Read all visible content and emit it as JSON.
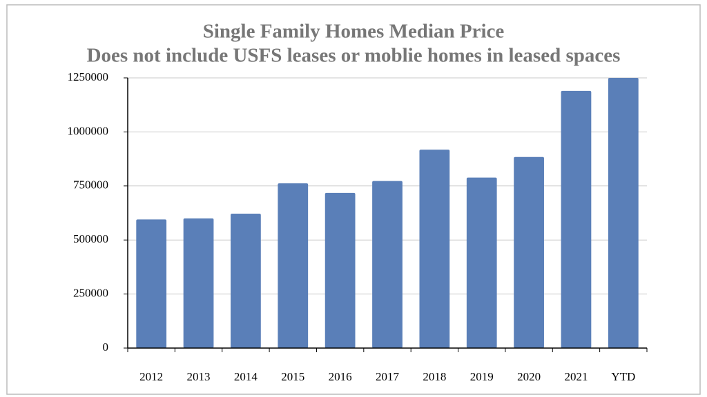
{
  "chart_data": {
    "type": "bar",
    "title": "Single Family Homes Median Price",
    "subtitle": "Does not include USFS leases or moblie homes in leased spaces",
    "categories": [
      "2012",
      "2013",
      "2014",
      "2015",
      "2016",
      "2017",
      "2018",
      "2019",
      "2020",
      "2021",
      "YTD"
    ],
    "values": [
      595000,
      600000,
      622000,
      762000,
      718000,
      773000,
      918000,
      789000,
      884000,
      1190000,
      1250000
    ],
    "color": "#5a7fb8",
    "ylim": [
      0,
      1250000
    ],
    "yticks": [
      0,
      250000,
      500000,
      750000,
      1000000,
      1250000
    ],
    "grid": true
  }
}
